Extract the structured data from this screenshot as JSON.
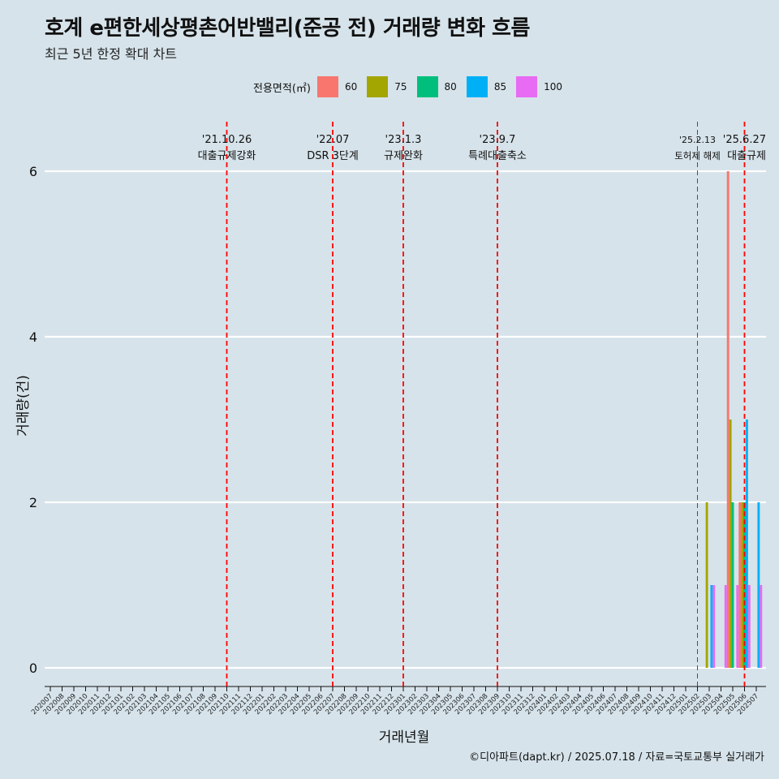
{
  "title": "호계 e편한세상평촌어반밸리(준공 전) 거래량 변화 흐름",
  "subtitle": "최근 5년 한정 확대 차트",
  "caption": "©디아파트(dapt.kr) / 2025.07.18 / 자료=국토교통부 실거래가",
  "colors": {
    "background": "#d6e3ea",
    "grid": "#ffffff",
    "event_line": "#ff0000",
    "series": {
      "60": "#f8766d",
      "75": "#a3a500",
      "80": "#00bf7d",
      "85": "#00b0f6",
      "100": "#e76bf3"
    }
  },
  "chart_data": {
    "type": "bar",
    "title": "호계 e편한세상평촌어반밸리(준공 전) 거래량 변화 흐름",
    "xlabel": "거래년월",
    "ylabel": "거래량(건)",
    "ylim": [
      0,
      6.4
    ],
    "yticks": [
      0,
      2,
      4,
      6
    ],
    "legend_title": "전용면적(㎡)",
    "legend_position": "top",
    "categories": [
      "202007",
      "202008",
      "202009",
      "202010",
      "202011",
      "202012",
      "202101",
      "202102",
      "202103",
      "202104",
      "202105",
      "202106",
      "202107",
      "202108",
      "202109",
      "202110",
      "202111",
      "202112",
      "202201",
      "202202",
      "202203",
      "202204",
      "202205",
      "202206",
      "202207",
      "202208",
      "202209",
      "202210",
      "202211",
      "202212",
      "202301",
      "202302",
      "202303",
      "202304",
      "202305",
      "202306",
      "202307",
      "202308",
      "202309",
      "202310",
      "202311",
      "202312",
      "202401",
      "202402",
      "202403",
      "202404",
      "202405",
      "202406",
      "202407",
      "202408",
      "202409",
      "202410",
      "202411",
      "202412",
      "202501",
      "202502",
      "202503",
      "202504",
      "202505",
      "202506",
      "202507"
    ],
    "series": [
      {
        "name": "60",
        "data": [
          {
            "month": "202505",
            "value": 6
          },
          {
            "month": "202506",
            "value": 2
          }
        ]
      },
      {
        "name": "75",
        "data": [
          {
            "month": "202503",
            "value": 2
          },
          {
            "month": "202505",
            "value": 3
          },
          {
            "month": "202506",
            "value": 2
          }
        ]
      },
      {
        "name": "80",
        "data": [
          {
            "month": "202505",
            "value": 2
          },
          {
            "month": "202506",
            "value": 2
          }
        ]
      },
      {
        "name": "85",
        "data": [
          {
            "month": "202503",
            "value": 1
          },
          {
            "month": "202506",
            "value": 3
          },
          {
            "month": "202507",
            "value": 2
          }
        ]
      },
      {
        "name": "100",
        "data": [
          {
            "month": "202503",
            "value": 1
          },
          {
            "month": "202504",
            "value": 1
          },
          {
            "month": "202505",
            "value": 1
          },
          {
            "month": "202506",
            "value": 1
          },
          {
            "month": "202507",
            "value": 1
          }
        ]
      }
    ],
    "events": [
      {
        "month": "202110",
        "date": "'21.10.26",
        "label": "대출규제강화",
        "style": "bold"
      },
      {
        "month": "202207",
        "date": "'22.07",
        "label": "DSR 3단계",
        "style": "bold"
      },
      {
        "month": "202301",
        "date": "'23.1.3",
        "label": "규제완화",
        "style": "bold"
      },
      {
        "month": "202309",
        "date": "'23.9.7",
        "label": "특례대출축소",
        "style": "bold"
      },
      {
        "month": "202502",
        "date": "'25.2.13",
        "label": "토허제 해제",
        "style": "thin"
      },
      {
        "month": "202506",
        "date": "'25.6.27",
        "label": "대출규제",
        "style": "bold"
      }
    ]
  }
}
